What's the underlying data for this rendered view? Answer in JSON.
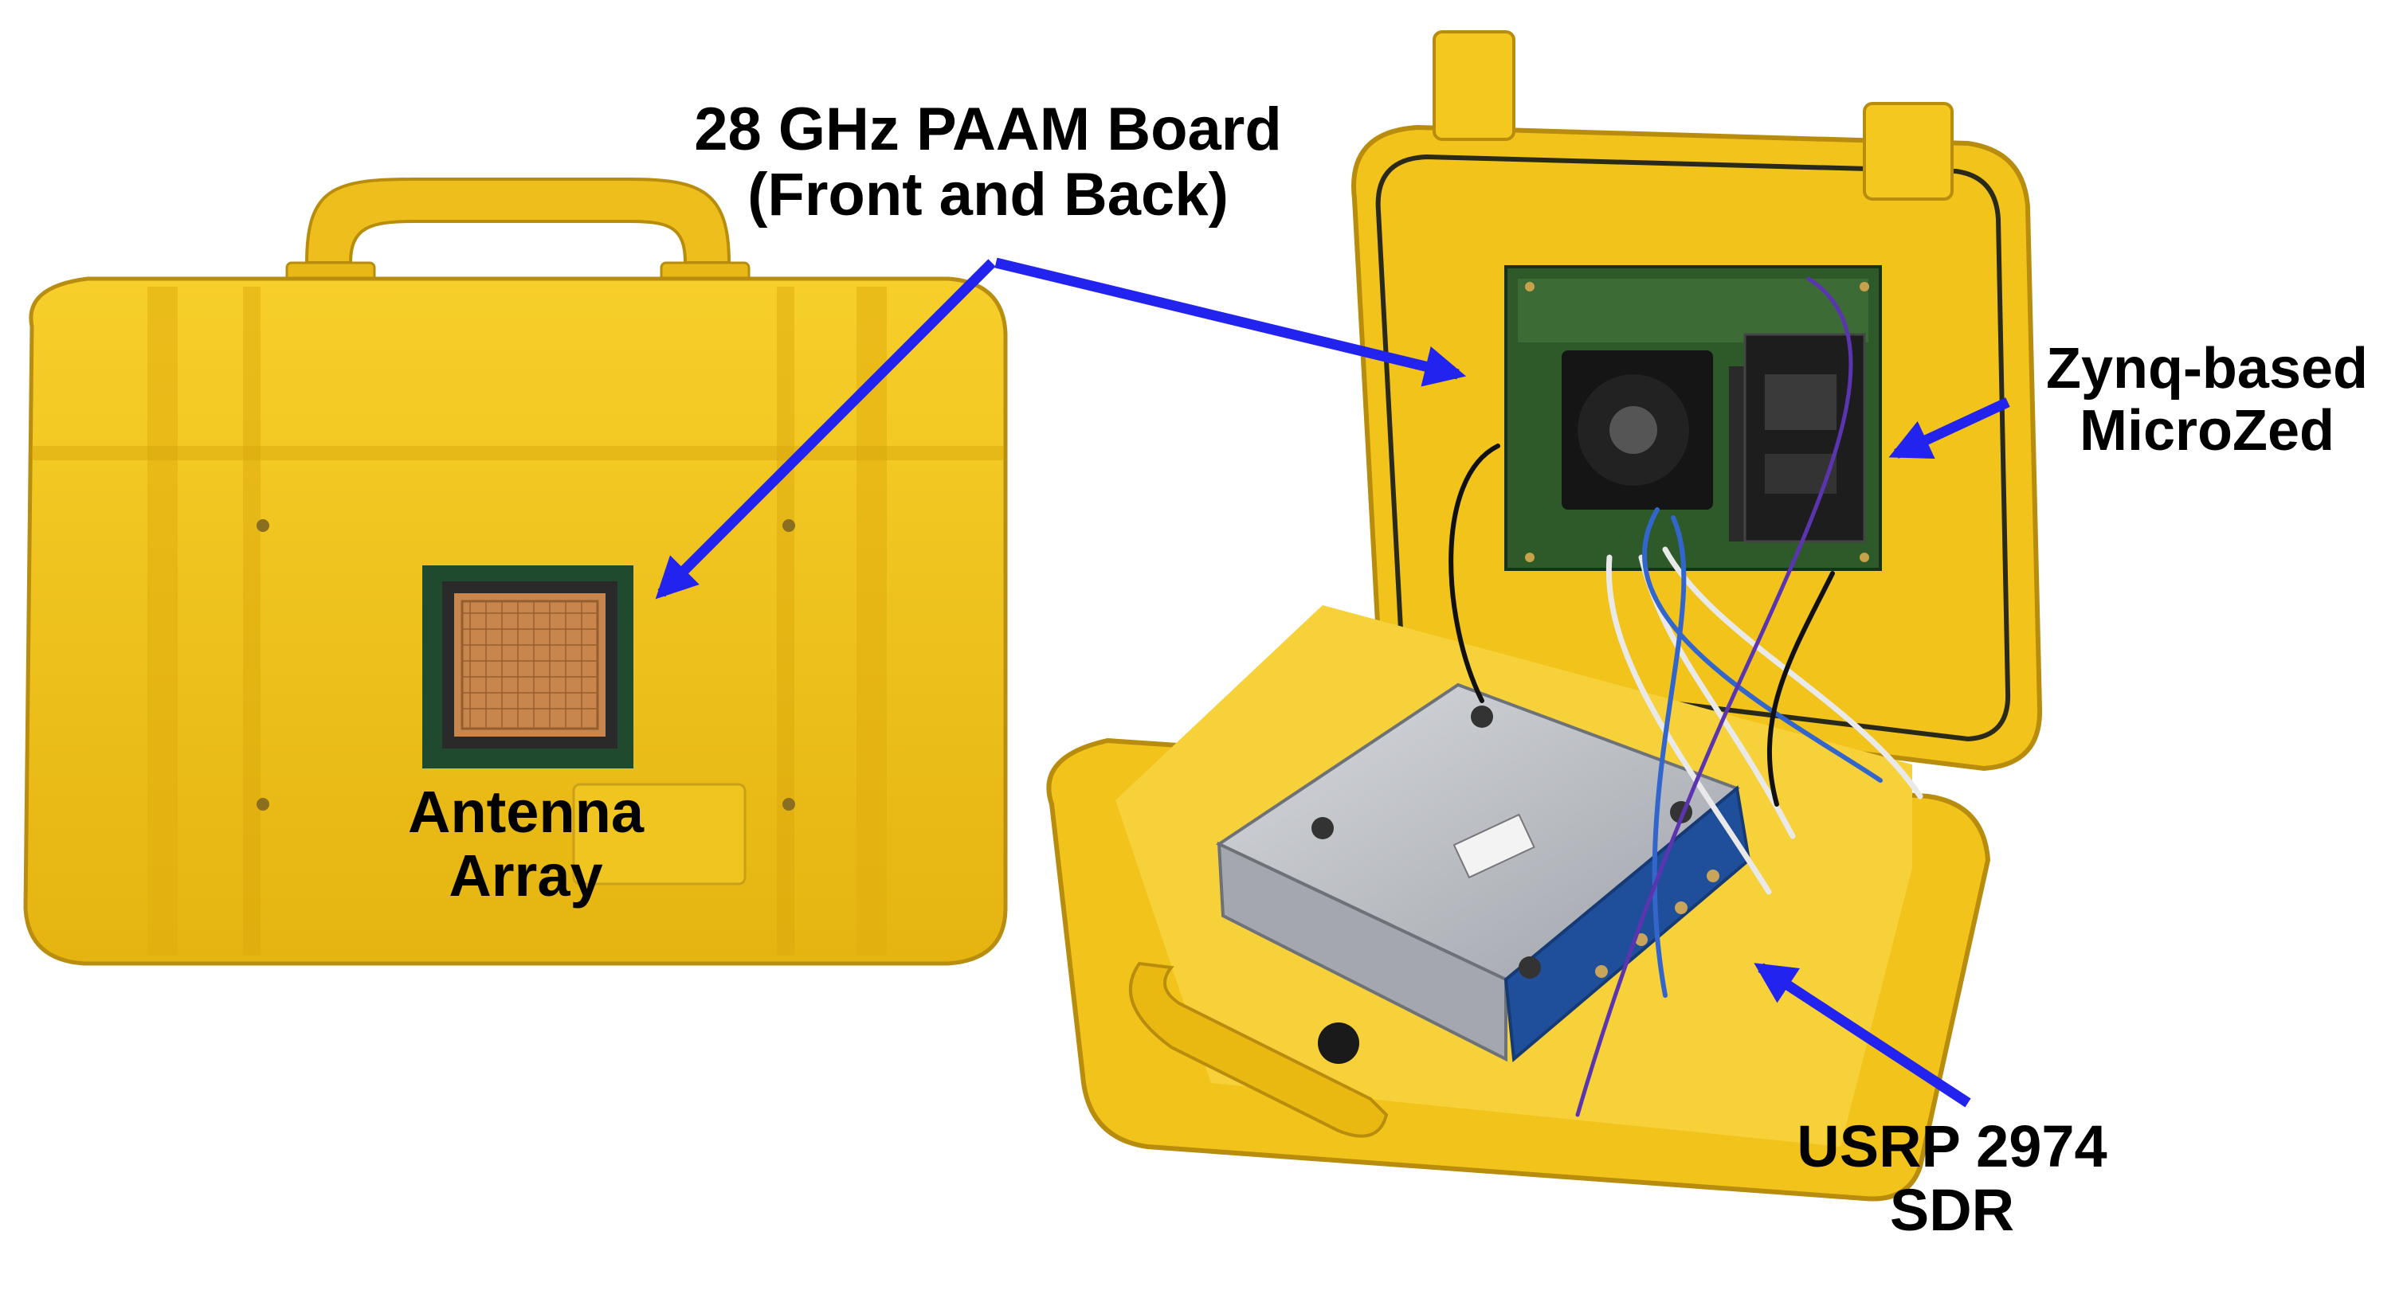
{
  "labels": {
    "paam": {
      "line1": "28 GHz PAAM Board",
      "line2": "(Front and Back)"
    },
    "zynq": {
      "line1": "Zynq-based",
      "line2": "MicroZed"
    },
    "usrp": {
      "line1": "USRP 2974",
      "line2": "SDR"
    },
    "antenna": {
      "line1": "Antenna",
      "line2": "Array"
    }
  },
  "colors": {
    "case_yellow": "#f2c41c",
    "case_shadow": "#c99a10",
    "arrow_blue": "#2323f0",
    "board_green": "#2e5a2a",
    "antenna_copper": "#c8864d",
    "sdr_gray": "#b9bcc2",
    "sdr_blue": "#1f4f9a"
  }
}
